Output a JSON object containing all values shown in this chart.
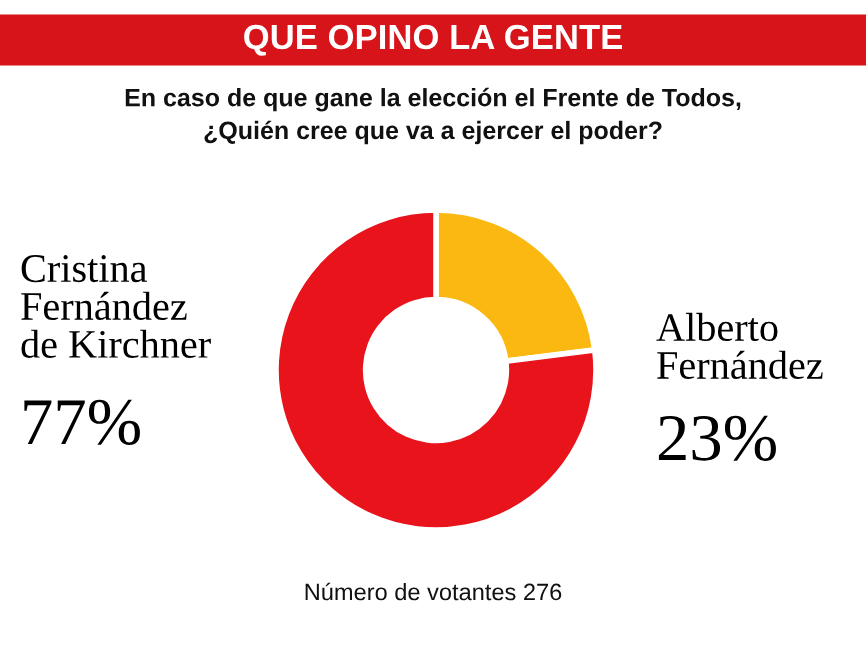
{
  "chart_data": {
    "type": "donut",
    "title": "QUE OPINO LA GENTE",
    "subtitle": "En caso de que gane la elección el Frente de Todos,\n¿Quién cree que va a ejercer el poder?",
    "categories": [
      "Alberto\nFernández",
      "Cristina\nFernández\nde Kirchner"
    ],
    "values": [
      23,
      77
    ],
    "colors": [
      "#fbb811",
      "#e8131b"
    ],
    "value_labels": [
      "23%",
      "77%"
    ],
    "annotations": [
      "Número de votantes 276"
    ]
  }
}
